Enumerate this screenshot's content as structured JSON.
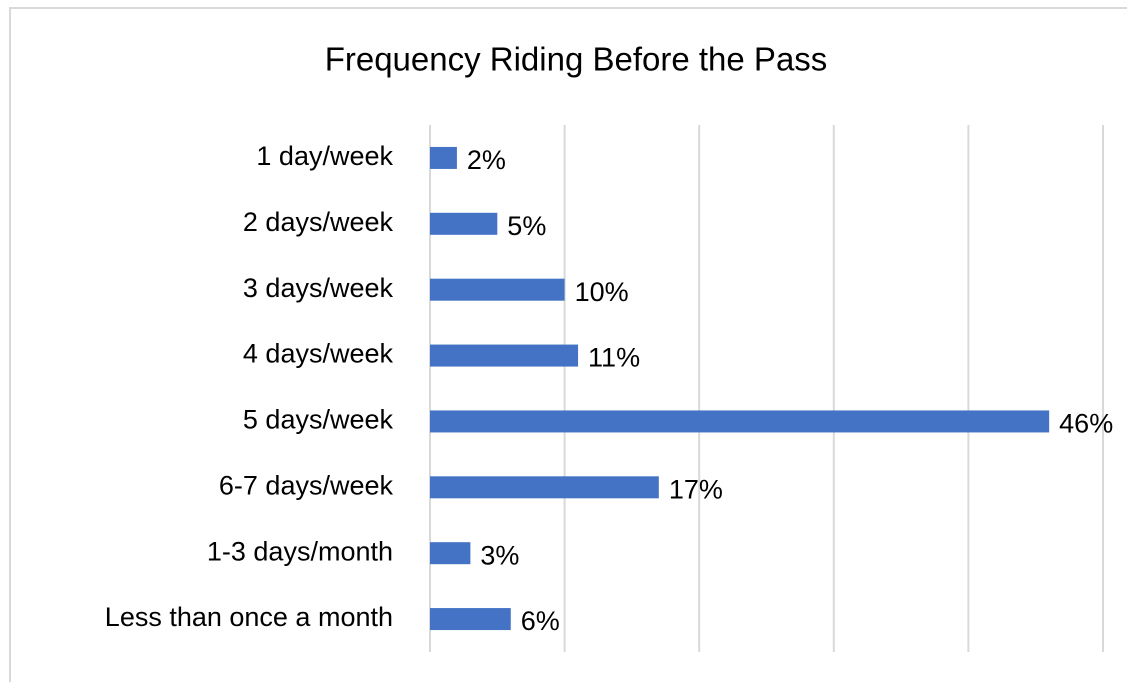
{
  "chart_data": {
    "type": "bar",
    "orientation": "horizontal",
    "title": "Frequency Riding Before the Pass",
    "categories": [
      "1 day/week",
      "2 days/week",
      "3 days/week",
      "4 days/week",
      "5 days/week",
      "6-7 days/week",
      "1-3 days/month",
      "Less than once a month"
    ],
    "values": [
      2,
      5,
      10,
      11,
      46,
      17,
      3,
      6
    ],
    "value_labels": [
      "2%",
      "5%",
      "10%",
      "11%",
      "46%",
      "17%",
      "3%",
      "6%"
    ],
    "color": "#4472c4",
    "xlim": [
      0,
      50
    ],
    "xticks": [
      0,
      10,
      20,
      30,
      40,
      50
    ],
    "grid": true
  }
}
